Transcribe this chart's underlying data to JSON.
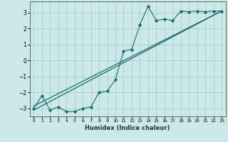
{
  "xlabel": "Humidex (Indice chaleur)",
  "bg_color": "#cce8e8",
  "grid_color": "#aacfcf",
  "line_color": "#1a6b6b",
  "xlim": [
    -0.5,
    23.5
  ],
  "ylim": [
    -3.5,
    3.7
  ],
  "xticks": [
    0,
    1,
    2,
    3,
    4,
    5,
    6,
    7,
    8,
    9,
    10,
    11,
    12,
    13,
    14,
    15,
    16,
    17,
    18,
    19,
    20,
    21,
    22,
    23
  ],
  "yticks": [
    -3,
    -2,
    -1,
    0,
    1,
    2,
    3
  ],
  "series1_x": [
    0,
    1,
    2,
    3,
    4,
    5,
    6,
    7,
    8,
    9,
    10,
    11,
    12,
    13,
    14,
    15,
    16,
    17,
    18,
    19,
    20,
    21,
    22,
    23
  ],
  "series1_y": [
    -3.0,
    -2.2,
    -3.1,
    -2.9,
    -3.2,
    -3.2,
    -3.0,
    -2.9,
    -2.0,
    -1.9,
    -1.2,
    0.6,
    0.7,
    2.25,
    3.4,
    2.5,
    2.6,
    2.5,
    3.1,
    3.05,
    3.1,
    3.05,
    3.1,
    3.1
  ],
  "series2_x": [
    0,
    23
  ],
  "series2_y": [
    -2.85,
    3.1
  ],
  "series3_x": [
    0,
    23
  ],
  "series3_y": [
    -3.1,
    3.1
  ]
}
